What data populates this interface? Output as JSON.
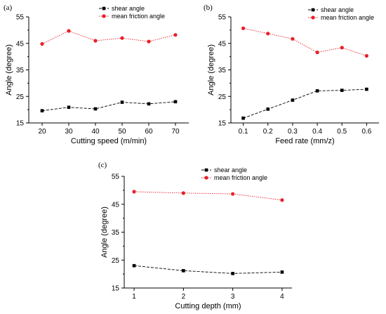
{
  "colors": {
    "shear": "#000000",
    "friction": "#e8202a",
    "axis": "#000000"
  },
  "chart_data": [
    {
      "type": "line",
      "panel_label": "(a)",
      "xlabel": "Cutting speed (m/min)",
      "ylabel": "Angle (degree)",
      "x": [
        20,
        30,
        40,
        50,
        60,
        70
      ],
      "x_tick_labels": [
        "20",
        "30",
        "40",
        "50",
        "60",
        "70"
      ],
      "xlim": [
        15,
        75
      ],
      "ylim": [
        15,
        55
      ],
      "y_ticks": [
        15,
        25,
        35,
        45,
        55
      ],
      "y_tick_labels": [
        "15",
        "25",
        "35",
        "45",
        "55"
      ],
      "legend_position": "top-right",
      "series": [
        {
          "name": "shear angle",
          "marker": "square",
          "values": [
            19.6,
            20.9,
            20.3,
            22.8,
            22.2,
            23.0
          ]
        },
        {
          "name": "mean friction angle",
          "marker": "circle",
          "values": [
            44.8,
            49.7,
            46.0,
            47.0,
            45.7,
            48.2
          ]
        }
      ]
    },
    {
      "type": "line",
      "panel_label": "(b)",
      "xlabel": "Feed rate (mm/z)",
      "ylabel": "Angle (degree)",
      "x": [
        0.1,
        0.2,
        0.3,
        0.4,
        0.5,
        0.6
      ],
      "x_tick_labels": [
        "0.1",
        "0.2",
        "0.3",
        "0.4",
        "0.5",
        "0.6"
      ],
      "xlim": [
        0.05,
        0.65
      ],
      "ylim": [
        15,
        55
      ],
      "y_ticks": [
        15,
        25,
        35,
        45,
        55
      ],
      "y_tick_labels": [
        "15",
        "25",
        "35",
        "45",
        "55"
      ],
      "legend_position": "top-right",
      "series": [
        {
          "name": "shear angle",
          "marker": "square",
          "values": [
            16.8,
            20.2,
            23.6,
            27.1,
            27.3,
            27.7
          ]
        },
        {
          "name": "mean friction angle",
          "marker": "circle",
          "values": [
            50.7,
            48.7,
            46.7,
            41.6,
            43.4,
            40.3
          ]
        }
      ]
    },
    {
      "type": "line",
      "panel_label": "(c)",
      "xlabel": "Cutting depth (mm)",
      "ylabel": "Angle (degree)",
      "x": [
        1,
        2,
        3,
        4
      ],
      "x_tick_labels": [
        "1",
        "2",
        "3",
        "4"
      ],
      "xlim": [
        0.8,
        4.2
      ],
      "ylim": [
        15,
        55
      ],
      "y_ticks": [
        15,
        25,
        35,
        45,
        55
      ],
      "y_tick_labels": [
        "15",
        "25",
        "35",
        "45",
        "55"
      ],
      "legend_position": "top-right",
      "series": [
        {
          "name": "shear angle",
          "marker": "square",
          "values": [
            23.0,
            21.2,
            20.2,
            20.7
          ]
        },
        {
          "name": "mean friction angle",
          "marker": "circle",
          "values": [
            49.5,
            49.0,
            48.7,
            46.5
          ]
        }
      ]
    }
  ]
}
